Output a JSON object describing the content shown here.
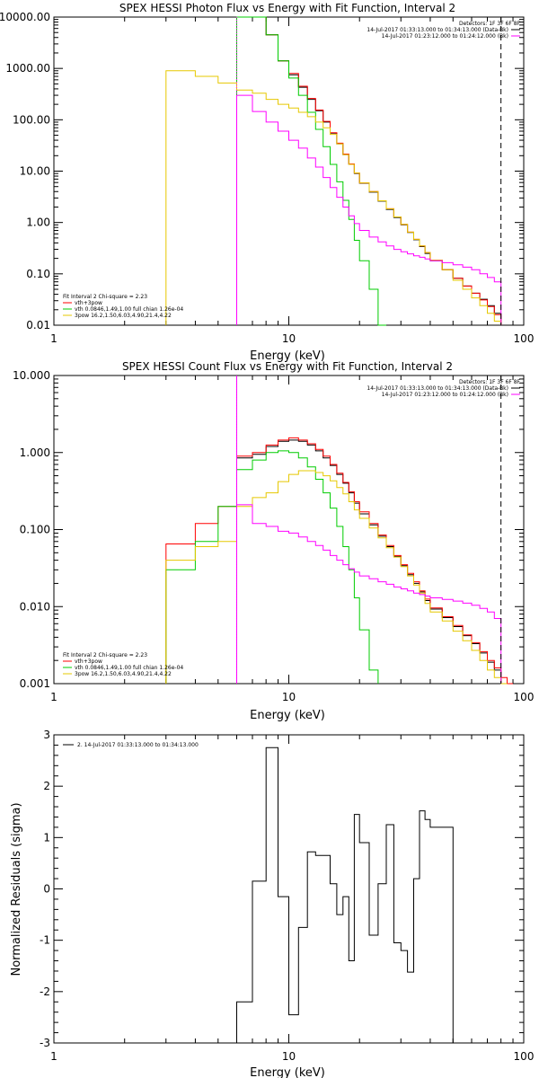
{
  "panels": [
    {
      "id": "photon",
      "title": "SPEX HESSI Photon Flux vs Energy with Fit Function, Interval 2",
      "xlabel": "Energy (keV)",
      "ylabel": "",
      "xscale": "log",
      "yscale": "log",
      "xlim": [
        1,
        100
      ],
      "ylim": [
        0.01,
        10000
      ],
      "x_ticks": [
        "1",
        "10",
        "100"
      ],
      "y_ticks": [
        "0.01",
        "0.10",
        "1.00",
        "10.00",
        "100.00",
        "1000.00",
        "10000.00"
      ],
      "detectors": "Detectors: 1F 3F 6F 8F",
      "legend_right": [
        {
          "label": "14-Jul-2017 01:33:13.000 to 01:34:13.000 (Data-Bk)",
          "color": "#000000"
        },
        {
          "label": "14-Jul-2017 01:23:12.000 to 01:24:12.000 (Bk)",
          "color": "#ff00ff"
        }
      ],
      "legend_left_header": "Fit Interval 2   Chi-square = 2.23",
      "legend_left": [
        {
          "label": "vth+3pow",
          "color": "#ff0000"
        },
        {
          "label": "vth 0.0846,1.49,1.00  full chian 1.26e-04",
          "color": "#00cc00"
        },
        {
          "label": "3pow 16.2,1.50,6.03,4.90,21.4,4.22",
          "color": "#e6c800"
        }
      ],
      "vlines": [
        {
          "x": 6,
          "style": "dotted",
          "color": "#ff00ff"
        },
        {
          "x": 80,
          "style": "dashed",
          "color": "#000000"
        }
      ]
    },
    {
      "id": "count",
      "title": "SPEX HESSI Count Flux vs Energy with Fit Function, Interval 2",
      "xlabel": "Energy (keV)",
      "ylabel": "",
      "xscale": "log",
      "yscale": "log",
      "xlim": [
        1,
        100
      ],
      "ylim": [
        0.001,
        10
      ],
      "x_ticks": [
        "1",
        "10",
        "100"
      ],
      "y_ticks": [
        "0.001",
        "0.010",
        "0.100",
        "1.000",
        "10.000"
      ],
      "detectors": "Detectors: 1F 3F 6F 8F",
      "legend_right": [
        {
          "label": "14-Jul-2017 01:33:13.000 to 01:34:13.000 (Data-Bk)",
          "color": "#000000"
        },
        {
          "label": "14-Jul-2017 01:23:12.000 to 01:24:12.000 (Bk)",
          "color": "#ff00ff"
        }
      ],
      "legend_left_header": "Fit Interval 2   Chi-square = 2.23",
      "legend_left": [
        {
          "label": "vth+3pow",
          "color": "#ff0000"
        },
        {
          "label": "vth 0.0846,1.49,1.00  full chian 1.26e-04",
          "color": "#00cc00"
        },
        {
          "label": "3pow 16.2,1.50,6.03,4.90,21.4,4.22",
          "color": "#e6c800"
        }
      ],
      "vlines": [
        {
          "x": 6,
          "style": "dotted",
          "color": "#000000"
        },
        {
          "x": 6,
          "style": "solid",
          "color": "#ff00ff"
        },
        {
          "x": 80,
          "style": "dashed",
          "color": "#000000"
        }
      ]
    },
    {
      "id": "resid",
      "title": "",
      "xlabel": "Energy (keV)",
      "ylabel": "Normalized Residuals (sigma)",
      "xscale": "log",
      "yscale": "linear",
      "xlim": [
        1,
        100
      ],
      "ylim": [
        -3,
        3
      ],
      "x_ticks": [
        "1",
        "10",
        "100"
      ],
      "y_ticks": [
        "-3",
        "-2",
        "-1",
        "0",
        "1",
        "2",
        "3"
      ],
      "legend_left_header": "",
      "legend_right": [
        {
          "label": "2. 14-Jul-2017 01:33:13.000 to 01:34:13.000",
          "color": "#000000"
        }
      ]
    }
  ],
  "chart_data": [
    {
      "type": "line",
      "title": "SPEX HESSI Photon Flux vs Energy with Fit Function, Interval 2",
      "xlabel": "Energy (keV)",
      "xscale": "log",
      "yscale": "log",
      "xlim": [
        1,
        100
      ],
      "ylim": [
        0.01,
        10000
      ],
      "bin_edges": [
        3,
        4,
        5,
        6,
        7,
        8,
        9,
        10,
        11,
        12,
        13,
        14,
        15,
        16,
        17,
        18,
        19,
        20,
        22,
        24,
        26,
        28,
        30,
        32,
        34,
        36,
        38,
        40,
        45,
        50,
        55,
        60,
        65,
        70,
        75,
        80
      ],
      "series": [
        {
          "name": "Data-Bk",
          "color": "#000000",
          "values": [
            null,
            null,
            null,
            10000,
            10000,
            4500,
            1400,
            750,
            430,
            250,
            150,
            90,
            55,
            34,
            21,
            13.5,
            9,
            5.8,
            3.9,
            2.6,
            1.8,
            1.25,
            0.9,
            0.64,
            0.46,
            0.34,
            0.25,
            0.18,
            0.12,
            0.082,
            0.058,
            0.042,
            0.032,
            0.024,
            0.017
          ]
        },
        {
          "name": "vth+3pow",
          "color": "#ff0000",
          "values": [
            null,
            null,
            null,
            10000,
            10000,
            4500,
            1400,
            800,
            450,
            260,
            155,
            93,
            56,
            35,
            21.5,
            13.8,
            9.2,
            5.9,
            4.0,
            2.65,
            1.85,
            1.28,
            0.92,
            0.65,
            0.47,
            0.35,
            0.26,
            0.185,
            0.12,
            0.082,
            0.058,
            0.042,
            0.031,
            0.023,
            0.016
          ]
        },
        {
          "name": "vth 0.0846,1.49,1.00",
          "color": "#00cc00",
          "values": [
            null,
            null,
            null,
            10000,
            10000,
            4500,
            1400,
            650,
            300,
            140,
            65,
            30,
            13.5,
            6.2,
            2.7,
            1.15,
            0.45,
            0.18,
            0.05,
            0.01,
            null,
            null,
            null,
            null,
            null,
            null,
            null,
            null,
            null,
            null,
            null,
            null,
            null,
            null,
            null
          ]
        },
        {
          "name": "3pow",
          "color": "#e6c800",
          "values": [
            900,
            700,
            520,
            380,
            330,
            250,
            200,
            170,
            140,
            115,
            90,
            70,
            52,
            34,
            21,
            13.5,
            9.2,
            5.9,
            4.0,
            2.65,
            1.85,
            1.28,
            0.92,
            0.65,
            0.47,
            0.35,
            0.26,
            0.185,
            0.12,
            0.075,
            0.05,
            0.034,
            0.024,
            0.017,
            0.012
          ]
        },
        {
          "name": "Bk",
          "color": "#ff00ff",
          "values": [
            null,
            null,
            null,
            300,
            145,
            90,
            60,
            40,
            28,
            18,
            12,
            7.5,
            4.8,
            3.1,
            2.0,
            1.35,
            0.95,
            0.7,
            0.52,
            0.42,
            0.35,
            0.3,
            0.27,
            0.245,
            0.225,
            0.21,
            0.195,
            0.18,
            0.165,
            0.15,
            0.135,
            0.12,
            0.1,
            0.085,
            0.07
          ]
        }
      ]
    },
    {
      "type": "line",
      "title": "SPEX HESSI Count Flux vs Energy with Fit Function, Interval 2",
      "xlabel": "Energy (keV)",
      "xscale": "log",
      "yscale": "log",
      "xlim": [
        1,
        100
      ],
      "ylim": [
        0.001,
        10
      ],
      "bin_edges": [
        3,
        4,
        5,
        6,
        7,
        8,
        9,
        10,
        11,
        12,
        13,
        14,
        15,
        16,
        17,
        18,
        19,
        20,
        22,
        24,
        26,
        28,
        30,
        32,
        34,
        36,
        38,
        40,
        45,
        50,
        55,
        60,
        65,
        70,
        75,
        80,
        85,
        90
      ],
      "series": [
        {
          "name": "Data-Bk",
          "color": "#000000",
          "values": [
            null,
            null,
            null,
            0.85,
            0.95,
            1.2,
            1.4,
            1.45,
            1.4,
            1.25,
            1.05,
            0.85,
            0.68,
            0.52,
            0.4,
            0.3,
            0.22,
            0.16,
            0.115,
            0.082,
            0.06,
            0.045,
            0.034,
            0.026,
            0.02,
            0.0155,
            0.012,
            0.0093,
            0.0072,
            0.0055,
            0.0042,
            0.0033,
            0.0025,
            0.0019,
            0.0015,
            0.001,
            null
          ]
        },
        {
          "name": "vth+3pow",
          "color": "#ff0000",
          "values": [
            0.065,
            0.12,
            0.2,
            0.9,
            1.0,
            1.25,
            1.45,
            1.55,
            1.45,
            1.3,
            1.1,
            0.9,
            0.7,
            0.54,
            0.41,
            0.31,
            0.23,
            0.17,
            0.12,
            0.085,
            0.062,
            0.046,
            0.035,
            0.027,
            0.021,
            0.016,
            0.0125,
            0.0096,
            0.0074,
            0.0057,
            0.0043,
            0.0034,
            0.0026,
            0.002,
            0.0016,
            0.0012,
            0.001
          ]
        },
        {
          "name": "vth 0.0846,1.49,1.00",
          "color": "#00cc00",
          "values": [
            0.03,
            0.07,
            0.2,
            0.6,
            0.8,
            1.0,
            1.05,
            1.0,
            0.85,
            0.65,
            0.45,
            0.3,
            0.19,
            0.11,
            0.06,
            0.03,
            0.013,
            0.005,
            0.0015,
            null,
            null,
            null,
            null,
            null,
            null,
            null,
            null,
            null,
            null,
            null,
            null,
            null,
            null,
            null,
            null,
            null,
            null
          ]
        },
        {
          "name": "3pow",
          "color": "#e6c800",
          "values": [
            0.04,
            0.06,
            0.07,
            0.2,
            0.26,
            0.3,
            0.42,
            0.52,
            0.58,
            0.58,
            0.55,
            0.5,
            0.43,
            0.35,
            0.29,
            0.23,
            0.18,
            0.14,
            0.105,
            0.078,
            0.058,
            0.044,
            0.033,
            0.025,
            0.019,
            0.015,
            0.011,
            0.0085,
            0.0065,
            0.0048,
            0.0036,
            0.0027,
            0.002,
            0.0015,
            0.0012,
            0.001,
            null
          ]
        },
        {
          "name": "Bk",
          "color": "#ff00ff",
          "values": [
            null,
            null,
            null,
            0.21,
            0.12,
            0.11,
            0.095,
            0.09,
            0.08,
            0.07,
            0.062,
            0.054,
            0.046,
            0.04,
            0.035,
            0.031,
            0.028,
            0.025,
            0.023,
            0.021,
            0.0195,
            0.018,
            0.017,
            0.016,
            0.015,
            0.0143,
            0.0137,
            0.013,
            0.0124,
            0.0118,
            0.0111,
            0.0104,
            0.0095,
            0.0085,
            0.007,
            null,
            null
          ]
        }
      ]
    },
    {
      "type": "line",
      "title": "",
      "xlabel": "Energy (keV)",
      "ylabel": "Normalized Residuals (sigma)",
      "xscale": "log",
      "yscale": "linear",
      "xlim": [
        1,
        100
      ],
      "ylim": [
        -3,
        3
      ],
      "bin_edges": [
        6,
        7,
        8,
        9,
        10,
        11,
        12,
        13,
        15,
        16,
        17,
        18,
        19,
        20,
        22,
        24,
        26,
        28,
        30,
        32,
        34,
        36,
        38,
        40,
        45,
        50,
        55,
        60,
        65,
        70,
        75,
        80
      ],
      "series": [
        {
          "name": "2. 14-Jul-2017 01:33:13.000 to 01:34:13.000",
          "color": "#000000",
          "values": [
            -2.2,
            0.15,
            2.75,
            -0.15,
            -2.45,
            -0.75,
            0.72,
            0.65,
            0.1,
            -0.5,
            -0.15,
            -1.4,
            1.45,
            0.9,
            -0.9,
            0.1,
            1.25,
            -1.05,
            -1.2,
            -1.62,
            0.2,
            1.52,
            1.35,
            1.2,
            1.2,
            null,
            null,
            null,
            null,
            null,
            null
          ]
        }
      ]
    }
  ]
}
